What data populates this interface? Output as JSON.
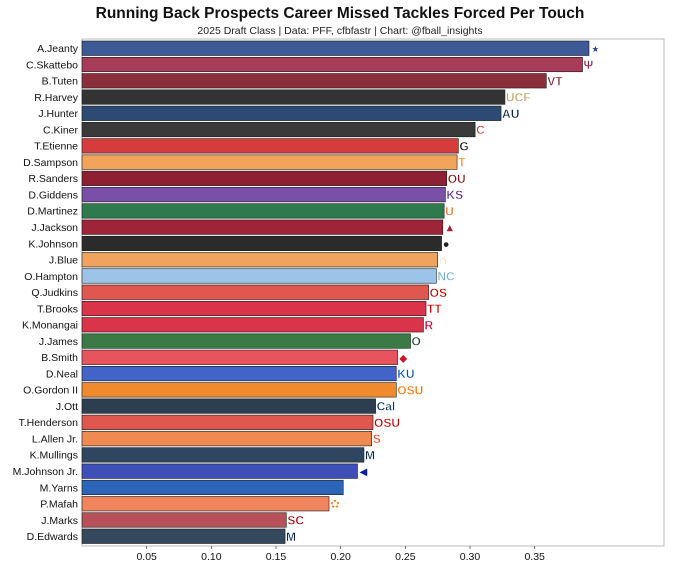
{
  "chart_data": {
    "type": "bar",
    "orientation": "horizontal",
    "title": "Running Back Prospects Career Missed Tackles Forced Per Touch",
    "subtitle": "2025 Draft Class | Data: PFF, cfbfastr | Chart: @fball_insights",
    "xlabel": "",
    "ylabel": "",
    "xlim": [
      0,
      0.45
    ],
    "xticks": [
      "0.05",
      "0.10",
      "0.15",
      "0.20",
      "0.25",
      "0.30",
      "0.35"
    ],
    "xtick_values": [
      0.05,
      0.1,
      0.15,
      0.2,
      0.25,
      0.3,
      0.35
    ],
    "grid": false,
    "categories": [
      "A.Jeanty",
      "C.Skattebo",
      "B.Tuten",
      "R.Harvey",
      "J.Hunter",
      "C.Kiner",
      "T.Etienne",
      "D.Sampson",
      "R.Sanders",
      "D.Giddens",
      "D.Martinez",
      "J.Jackson",
      "K.Johnson",
      "J.Blue",
      "O.Hampton",
      "Q.Judkins",
      "T.Brooks",
      "K.Monangai",
      "J.James",
      "B.Smith",
      "D.Neal",
      "O.Gordon II",
      "J.Ott",
      "T.Henderson",
      "L.Allen Jr.",
      "K.Mullings",
      "M.Johnson Jr.",
      "M.Yarns",
      "P.Mafah",
      "J.Marks",
      "D.Edwards"
    ],
    "values": [
      0.392,
      0.387,
      0.359,
      0.327,
      0.324,
      0.304,
      0.291,
      0.29,
      0.282,
      0.281,
      0.28,
      0.279,
      0.278,
      0.275,
      0.274,
      0.268,
      0.266,
      0.264,
      0.254,
      0.244,
      0.243,
      0.243,
      0.227,
      0.225,
      0.224,
      0.218,
      0.213,
      0.202,
      0.191,
      0.158,
      0.157
    ],
    "colors": [
      "#3D5A96",
      "#A63C57",
      "#8C2F3C",
      "#333333",
      "#2C4A73",
      "#3A3A3A",
      "#D73C3C",
      "#F2A55A",
      "#8E2033",
      "#7A4FA8",
      "#2F7A4D",
      "#9E2538",
      "#2B2B2B",
      "#F0A35E",
      "#9BC4E8",
      "#E0574F",
      "#D9344A",
      "#D9344A",
      "#3C7A45",
      "#E8545E",
      "#4263C7",
      "#F08A2C",
      "#2C3E50",
      "#E0574F",
      "#F08A50",
      "#2E4660",
      "#3F4FB8",
      "#2C64B8",
      "#F0845C",
      "#B8505A",
      "#34495E"
    ],
    "logos": [
      {
        "text": "★",
        "color": "#1F3A8A"
      },
      {
        "text": "Ψ",
        "color": "#8C1D40"
      },
      {
        "text": "VT",
        "color": "#7A1F2F"
      },
      {
        "text": "UCF",
        "color": "#B8A36A"
      },
      {
        "text": "AU",
        "color": "#0C2340"
      },
      {
        "text": "C",
        "color": "#E03A3E"
      },
      {
        "text": "G",
        "color": "#111111"
      },
      {
        "text": "T",
        "color": "#F28C28"
      },
      {
        "text": "OU",
        "color": "#841617"
      },
      {
        "text": "KS",
        "color": "#512888"
      },
      {
        "text": "U",
        "color": "#F47321"
      },
      {
        "text": "▲",
        "color": "#9D2235"
      },
      {
        "text": "●",
        "color": "#222222"
      },
      {
        "text": "∩",
        "color": "#BF5700"
      },
      {
        "text": "NC",
        "color": "#7BAFD4"
      },
      {
        "text": "OS",
        "color": "#BB0000"
      },
      {
        "text": "TT",
        "color": "#CC0000"
      },
      {
        "text": "R",
        "color": "#CC0033"
      },
      {
        "text": "O",
        "color": "#154733"
      },
      {
        "text": "◆",
        "color": "#CE1126"
      },
      {
        "text": "KU",
        "color": "#0051BA"
      },
      {
        "text": "OSU",
        "color": "#FF7300"
      },
      {
        "text": "Cal",
        "color": "#003262"
      },
      {
        "text": "OSU",
        "color": "#BB0000"
      },
      {
        "text": "S",
        "color": "#E84A27"
      },
      {
        "text": "M",
        "color": "#00274C"
      },
      {
        "text": "◀",
        "color": "#0021A5"
      },
      {
        "text": "◎",
        "color": "#00539F"
      },
      {
        "text": "✿",
        "color": "#F56600"
      },
      {
        "text": "SC",
        "color": "#990000"
      },
      {
        "text": "M",
        "color": "#00274C"
      }
    ]
  }
}
